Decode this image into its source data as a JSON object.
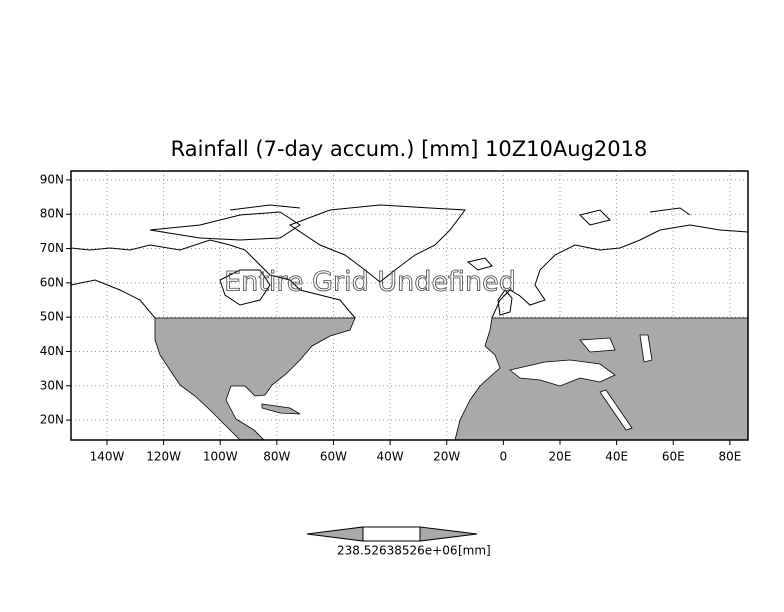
{
  "chart_data": {
    "type": "map",
    "title": "Rainfall (7-day accum.) [mm] 10Z10Aug2018",
    "annotation": "Entire Grid Undefined",
    "xlim": [
      -152.7,
      86.4
    ],
    "ylim": [
      14.2,
      92.6
    ],
    "xticks": [
      {
        "value": -140,
        "label": "140W"
      },
      {
        "value": -120,
        "label": "120W"
      },
      {
        "value": -100,
        "label": "100W"
      },
      {
        "value": -80,
        "label": "80W"
      },
      {
        "value": -60,
        "label": "60W"
      },
      {
        "value": -40,
        "label": "40W"
      },
      {
        "value": -20,
        "label": "20W"
      },
      0,
      {
        "value": 20,
        "label": "20E"
      },
      {
        "value": 40,
        "label": "40E"
      },
      {
        "value": 60,
        "label": "60E"
      },
      {
        "value": 80,
        "label": "80E"
      }
    ],
    "yticks": [
      {
        "value": 20,
        "label": "20N"
      },
      {
        "value": 30,
        "label": "30N"
      },
      {
        "value": 40,
        "label": "40N"
      },
      {
        "value": 50,
        "label": "50N"
      },
      {
        "value": 60,
        "label": "60N"
      },
      {
        "value": 70,
        "label": "70N"
      },
      {
        "value": 80,
        "label": "80N"
      },
      {
        "value": 90,
        "label": "90N"
      }
    ],
    "grid": true,
    "colorbar": {
      "label": "238.52638526e+06",
      "unit": "[mm]"
    }
  }
}
